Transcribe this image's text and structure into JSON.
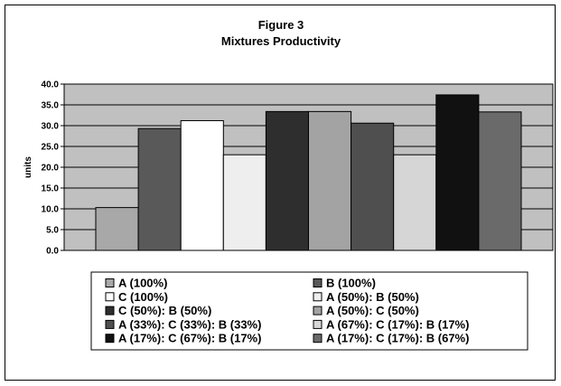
{
  "chart_data": {
    "type": "bar",
    "title": "Figure 3",
    "subtitle": "Mixtures Productivity",
    "ylabel": "units",
    "xlabel": "",
    "ylim": [
      0,
      40
    ],
    "yticks": [
      "0.0",
      "5.0",
      "10.0",
      "15.0",
      "20.0",
      "25.0",
      "30.0",
      "35.0",
      "40.0"
    ],
    "grid": true,
    "legend_position": "bottom",
    "series": [
      {
        "name": "A (100%)",
        "value": 10.3,
        "color": "#a8a8a8"
      },
      {
        "name": "B (100%)",
        "value": 29.3,
        "color": "#595959"
      },
      {
        "name": "C (100%)",
        "value": 31.2,
        "color": "#ffffff"
      },
      {
        "name": "A (50%): B (50%)",
        "value": 23.0,
        "color": "#eeeeee"
      },
      {
        "name": "C (50%): B (50%)",
        "value": 33.4,
        "color": "#2e2e2e"
      },
      {
        "name": "A (50%): C (50%)",
        "value": 33.4,
        "color": "#a3a3a3"
      },
      {
        "name": "A (33%): C (33%): B (33%)",
        "value": 30.6,
        "color": "#4f4f4f"
      },
      {
        "name": "A (67%): C (17%): B (17%)",
        "value": 23.0,
        "color": "#d6d6d6"
      },
      {
        "name": "A (17%): C (67%): B (17%)",
        "value": 37.4,
        "color": "#111111"
      },
      {
        "name": "A (17%): C (17%): B (67%)",
        "value": 33.3,
        "color": "#6a6a6a"
      }
    ],
    "plot_background": "#c0c0c0"
  }
}
